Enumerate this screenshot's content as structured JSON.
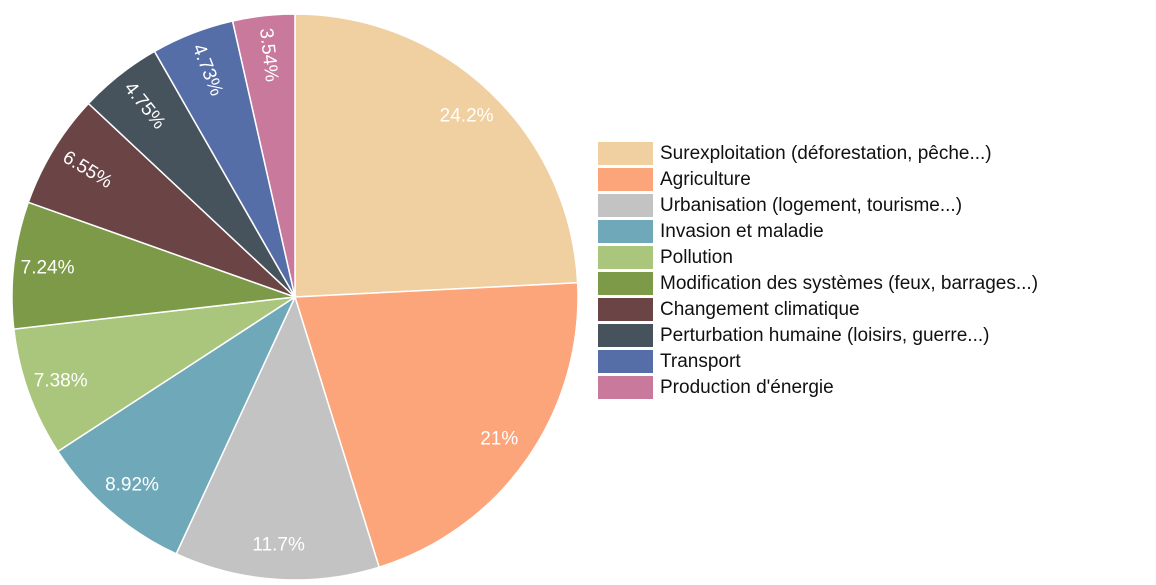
{
  "chart_data": {
    "type": "pie",
    "categories": [
      "Surexploitation (déforestation, pêche...)",
      "Agriculture",
      "Urbanisation (logement, tourisme...)",
      "Invasion et maladie",
      "Pollution",
      "Modification des systèmes (feux, barrages...)",
      "Changement climatique",
      "Perturbation humaine (loisirs, guerre...)",
      "Transport",
      "Production d'énergie"
    ],
    "values": [
      24.2,
      21,
      11.7,
      8.92,
      7.38,
      7.24,
      6.55,
      4.75,
      4.73,
      3.54
    ],
    "value_labels": [
      "24.2%",
      "21%",
      "11.7%",
      "8.92%",
      "7.38%",
      "7.24%",
      "6.55%",
      "4.75%",
      "4.73%",
      "3.54%"
    ],
    "colors": [
      "#f0cfa0",
      "#fca47a",
      "#c3c3c3",
      "#6fa8b8",
      "#aac57c",
      "#7d9a48",
      "#6b4446",
      "#46535c",
      "#566ea8",
      "#c97a9c"
    ],
    "legend": "right"
  }
}
